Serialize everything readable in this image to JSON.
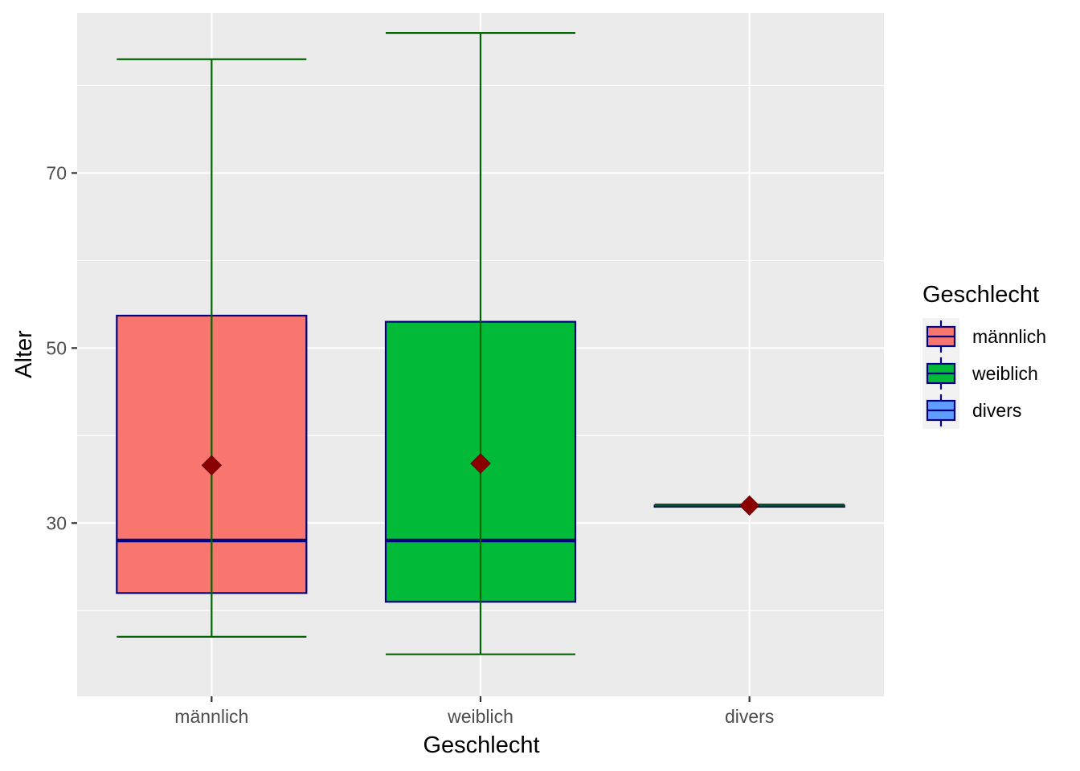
{
  "chart_data": {
    "type": "boxplot",
    "xlabel": "Geschlecht",
    "ylabel": "Alter",
    "categories": [
      "männlich",
      "weiblich",
      "divers"
    ],
    "yticks": [
      30,
      50,
      70
    ],
    "ylim": [
      10.2,
      88.3
    ],
    "grid": true,
    "legend": {
      "title": "Geschlecht",
      "position": "right",
      "entries": [
        "männlich",
        "weiblich",
        "divers"
      ]
    },
    "boxes": [
      {
        "category": "männlich",
        "min": 17,
        "q1": 22,
        "median": 28,
        "q3": 53.7,
        "max": 83,
        "mean": 36.6,
        "fill": "#F8766D"
      },
      {
        "category": "weiblich",
        "min": 15,
        "q1": 21,
        "median": 28,
        "q3": 53,
        "max": 86,
        "mean": 36.8,
        "fill": "#00BA38"
      },
      {
        "category": "divers",
        "min": 32,
        "q1": 32,
        "median": 32,
        "q3": 32,
        "max": 32,
        "mean": 32,
        "fill": "#619CFF"
      }
    ],
    "colors": {
      "panel_background": "#EBEBEB",
      "grid": "#FFFFFF",
      "box_outline": "#000080",
      "whisker": "#006400",
      "mean_marker": "#8B0000"
    }
  }
}
